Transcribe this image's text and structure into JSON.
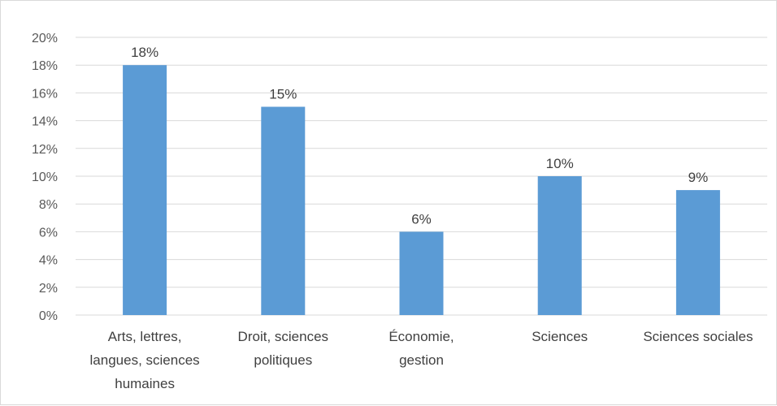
{
  "chart_data": {
    "type": "bar",
    "categories": [
      [
        "Arts, lettres,",
        "langues, sciences",
        "humaines"
      ],
      [
        "Droit, sciences",
        "politiques"
      ],
      [
        "Économie,",
        "gestion"
      ],
      [
        "Sciences"
      ],
      [
        "Sciences sociales"
      ]
    ],
    "values": [
      18,
      15,
      6,
      10,
      9
    ],
    "data_labels": [
      "18%",
      "15%",
      "6%",
      "10%",
      "9%"
    ],
    "y_ticks": [
      "0%",
      "2%",
      "4%",
      "6%",
      "8%",
      "10%",
      "12%",
      "14%",
      "16%",
      "18%",
      "20%"
    ],
    "ylim": [
      0,
      20
    ],
    "grid": true,
    "bar_color": "#5b9bd5",
    "grid_color": "#d9d9d9",
    "title": "",
    "xlabel": "",
    "ylabel": ""
  }
}
